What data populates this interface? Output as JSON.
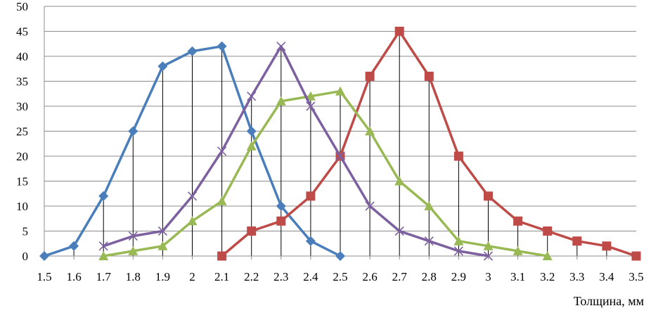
{
  "chart_data": {
    "type": "line",
    "title": "",
    "xlabel": "Толщина, мм",
    "ylabel": "",
    "x": [
      "1.5",
      "1.6",
      "1.7",
      "1.8",
      "1.9",
      "2",
      "2.1",
      "2.2",
      "2.3",
      "2.4",
      "2.5",
      "2.6",
      "2.7",
      "2.8",
      "2.9",
      "3",
      "3.1",
      "3.2",
      "3.3",
      "3.4",
      "3.5"
    ],
    "y_ticks": [
      "0",
      "5",
      "10",
      "15",
      "20",
      "25",
      "30",
      "35",
      "40",
      "45",
      "50"
    ],
    "ylim": [
      0,
      50
    ],
    "grid": "horizontal",
    "legend": "none",
    "drop_lines": true,
    "series": [
      {
        "color": "#4A7EBB",
        "marker": "diamond",
        "values": [
          0,
          2,
          12,
          25,
          38,
          41,
          42,
          25,
          10,
          3,
          0,
          null,
          null,
          null,
          null,
          null,
          null,
          null,
          null,
          null,
          null
        ]
      },
      {
        "color": "#BE4B48",
        "marker": "square",
        "values": [
          null,
          null,
          null,
          null,
          null,
          null,
          0,
          5,
          7,
          12,
          20,
          36,
          45,
          36,
          20,
          12,
          7,
          5,
          3,
          2,
          0
        ]
      },
      {
        "color": "#98B954",
        "marker": "triangle",
        "values": [
          null,
          null,
          0,
          1,
          2,
          7,
          11,
          22,
          31,
          32,
          33,
          25,
          15,
          10,
          3,
          2,
          1,
          0,
          null,
          null,
          null
        ]
      },
      {
        "color": "#7D60A0",
        "marker": "x",
        "values": [
          null,
          null,
          2,
          4,
          5,
          12,
          21,
          32,
          42,
          30,
          20,
          10,
          5,
          3,
          1,
          0,
          null,
          null,
          null,
          null,
          null
        ]
      }
    ]
  }
}
